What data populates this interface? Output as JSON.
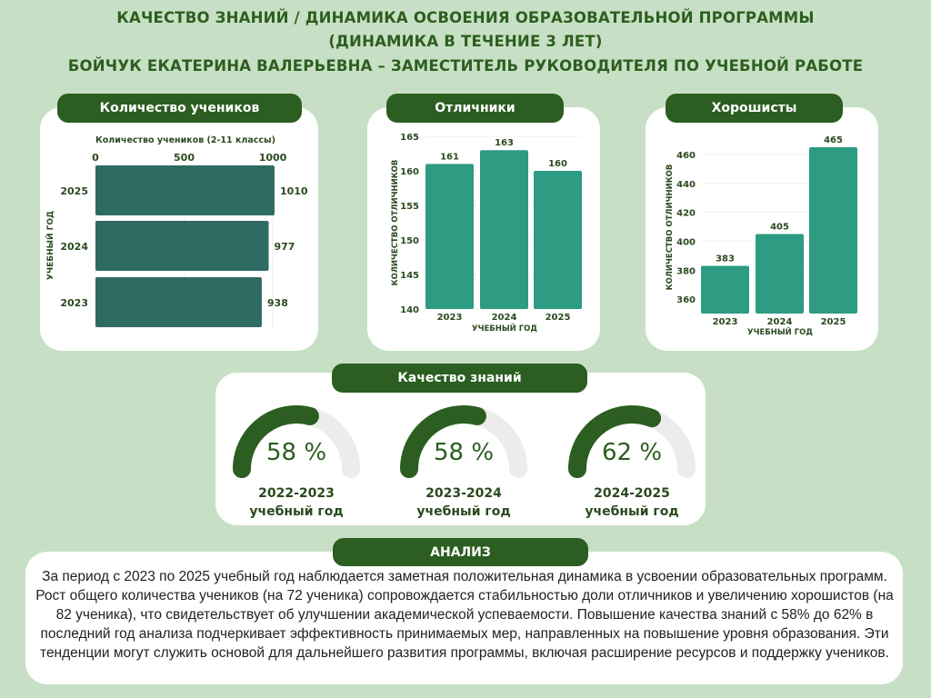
{
  "header": {
    "line1": "КАЧЕСТВО ЗНАНИЙ / ДИНАМИКА ОСВОЕНИЯ ОБРАЗОВАТЕЛЬНОЙ ПРОГРАММЫ",
    "line2": "(ДИНАМИКА В ТЕЧЕНИЕ 3 ЛЕТ)",
    "line3": "БОЙЧУК ЕКАТЕРИНА ВАЛЕРЬЕВНА – ЗАМЕСТИТЕЛЬ РУКОВОДИТЕЛЯ ПО УЧЕБНОЙ РАБОТЕ"
  },
  "cards": {
    "students": "Количество учеников",
    "excellent": "Отличники",
    "good": "Хорошисты",
    "quality": "Качество знаний",
    "analysis": "АНАЛИЗ"
  },
  "colors": {
    "bg": "#c7e0c5",
    "dark_green": "#2b5e20",
    "bar_h": "#2e6b62",
    "bar_v": "#2e9b83",
    "gauge_track": "#ececec"
  },
  "chart_data": [
    {
      "type": "bar",
      "orientation": "horizontal",
      "title": "Количество учеников (2-11 классы)",
      "ylabel": "УЧЕБНЫЙ ГОД",
      "xlabel": "",
      "categories": [
        "2025",
        "2024",
        "2023"
      ],
      "values": [
        1010,
        977,
        938
      ],
      "xlim": [
        0,
        1050
      ],
      "xticks": [
        0,
        500,
        1000
      ]
    },
    {
      "type": "bar",
      "title": "",
      "xlabel": "УЧЕБНЫЙ ГОД",
      "ylabel": "КОЛИЧЕСТВО ОТЛИЧНИКОВ",
      "categories": [
        "2023",
        "2024",
        "2025"
      ],
      "values": [
        161,
        163,
        160
      ],
      "ylim": [
        140,
        165
      ],
      "yticks": [
        140,
        145,
        150,
        155,
        160,
        165
      ]
    },
    {
      "type": "bar",
      "title": "",
      "xlabel": "УЧЕБНЫЙ ГОД",
      "ylabel": "КОЛИЧЕСТВО ОТЛИЧНИКОВ",
      "categories": [
        "2023",
        "2024",
        "2025"
      ],
      "values": [
        383,
        405,
        465
      ],
      "ylim": [
        350,
        470
      ],
      "yticks": [
        360,
        380,
        400,
        420,
        440,
        460
      ]
    }
  ],
  "gauges": [
    {
      "value": 58,
      "label": "58 %",
      "period": "2022-2023",
      "sub": "учебный год"
    },
    {
      "value": 58,
      "label": "58 %",
      "period": "2023-2024",
      "sub": "учебный год"
    },
    {
      "value": 62,
      "label": "62 %",
      "period": "2024-2025",
      "sub": "учебный год"
    }
  ],
  "analysis_text": "За период с 2023 по 2025  учебный год наблюдается заметная положительная динамика в усвоении образовательных программ. Рост общего количества учеников (на 72 ученика) сопровождается стабильностью доли отличников и увеличению хорошистов (на 82 ученика), что свидетельствует об улучшении академической успеваемости. Повышение качества знаний с 58% до 62% в последний год анализа подчеркивает эффективность принимаемых мер, направленных на повышение уровня образования. Эти тенденции могут служить основой для дальнейшего развития программы, включая расширение ресурсов и поддержку учеников."
}
